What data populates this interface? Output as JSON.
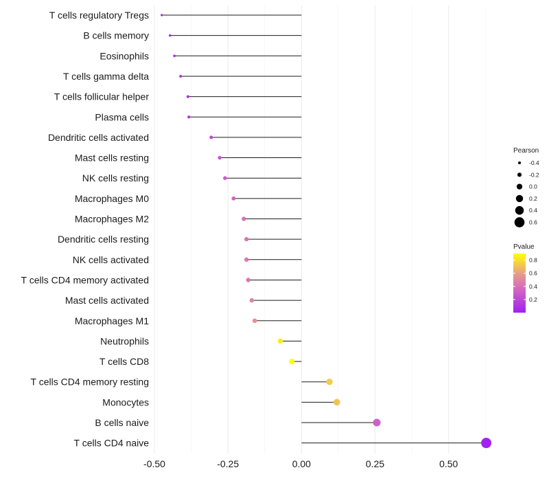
{
  "chart_data": {
    "type": "lollipop",
    "title": "",
    "xlabel": "",
    "ylabel": "",
    "xlim": [
      -0.5,
      0.65
    ],
    "x_ticks": [
      -0.5,
      -0.25,
      0,
      0.25,
      0.5
    ],
    "x_tick_labels": [
      "-0.50",
      "-0.25",
      "0.00",
      "0.25",
      "0.50"
    ],
    "categories": [
      "T cells regulatory  Tregs",
      "B cells memory",
      "Eosinophils",
      "T cells gamma delta",
      "T cells follicular helper",
      "Plasma cells",
      "Dendritic cells activated",
      "Mast cells resting",
      "NK cells resting",
      "Macrophages M0",
      "Macrophages M2",
      "Dendritic cells resting",
      "NK cells activated",
      "T cells CD4 memory activated",
      "Mast cells activated",
      "Macrophages M1",
      "Neutrophils",
      "T cells CD8",
      "T cells CD4 memory resting",
      "Monocytes",
      "B cells naive",
      "T cells CD4 naive"
    ],
    "pearson": [
      -0.475,
      -0.447,
      -0.432,
      -0.411,
      -0.386,
      -0.383,
      -0.307,
      -0.278,
      -0.26,
      -0.231,
      -0.196,
      -0.187,
      -0.187,
      -0.181,
      -0.169,
      -0.159,
      -0.072,
      -0.033,
      0.095,
      0.12,
      0.256,
      0.628
    ],
    "pvalue": [
      0.02,
      0.04,
      0.05,
      0.07,
      0.09,
      0.1,
      0.2,
      0.25,
      0.28,
      0.33,
      0.4,
      0.42,
      0.42,
      0.43,
      0.5,
      0.55,
      0.85,
      0.97,
      0.75,
      0.72,
      0.3,
      0.01
    ],
    "size_legend": {
      "title": "Pearson",
      "values": [
        -0.4,
        -0.2,
        0.0,
        0.2,
        0.4,
        0.6
      ],
      "labels": [
        "-0.4",
        "-0.2",
        "0.0",
        "0.2",
        "0.4",
        "0.6"
      ]
    },
    "color_legend": {
      "title": "Pvalue",
      "ticks": [
        0.2,
        0.4,
        0.6,
        0.8
      ],
      "labels": [
        "0.2",
        "0.4",
        "0.6",
        "0.8"
      ],
      "range": [
        0.0,
        0.9
      ],
      "low_color": "#a020f0",
      "high_color": "#ffff00"
    },
    "grid": true,
    "legend_position": "right"
  }
}
